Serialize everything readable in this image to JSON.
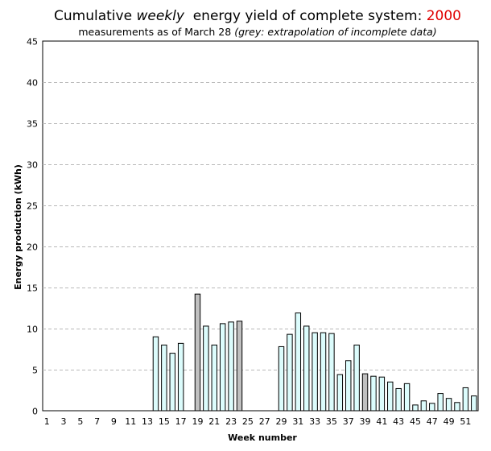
{
  "header": {
    "title_prefix": "Cumulative",
    "title_emphasis": "weekly",
    "title_middle": "energy yield of complete system:",
    "title_year": "2000",
    "subtitle_text": "measurements as of March 28",
    "subtitle_note": "(grey: extrapolation of incomplete data)"
  },
  "colors": {
    "complete_fill": "#dcfcfc",
    "extrapolated_fill": "#c0c0c0",
    "bar_stroke": "#000000",
    "grid": "#b8b8b8",
    "year": "#e00000"
  },
  "chart_data": {
    "type": "bar",
    "xlabel": "Week number",
    "ylabel": "Energy production (kWh)",
    "ylim": [
      0,
      45
    ],
    "yticks": [
      0,
      5,
      10,
      15,
      20,
      25,
      30,
      35,
      40,
      45
    ],
    "xticks": [
      1,
      3,
      5,
      7,
      9,
      11,
      13,
      15,
      17,
      19,
      21,
      23,
      25,
      27,
      29,
      31,
      33,
      35,
      37,
      39,
      41,
      43,
      45,
      47,
      49,
      51
    ],
    "grid": true,
    "weeks": [
      14,
      15,
      16,
      17,
      19,
      20,
      21,
      22,
      23,
      24,
      29,
      30,
      31,
      32,
      33,
      34,
      35,
      36,
      37,
      38,
      39,
      40,
      41,
      42,
      43,
      44,
      45,
      46,
      47,
      48,
      49,
      50,
      51,
      52
    ],
    "values": [
      9.0,
      8.0,
      7.0,
      8.2,
      14.2,
      10.3,
      8.0,
      10.6,
      10.8,
      10.9,
      7.8,
      9.3,
      11.9,
      10.3,
      9.5,
      9.5,
      9.4,
      4.4,
      6.1,
      8.0,
      4.5,
      4.2,
      4.1,
      3.5,
      2.7,
      3.3,
      0.7,
      1.2,
      0.9,
      2.1,
      1.5,
      1.0,
      2.8,
      1.8
    ],
    "extrapolated": [
      false,
      false,
      false,
      false,
      true,
      false,
      false,
      false,
      false,
      true,
      false,
      false,
      false,
      false,
      false,
      false,
      false,
      false,
      false,
      false,
      true,
      false,
      false,
      false,
      false,
      false,
      false,
      false,
      false,
      false,
      false,
      false,
      false,
      false
    ]
  }
}
